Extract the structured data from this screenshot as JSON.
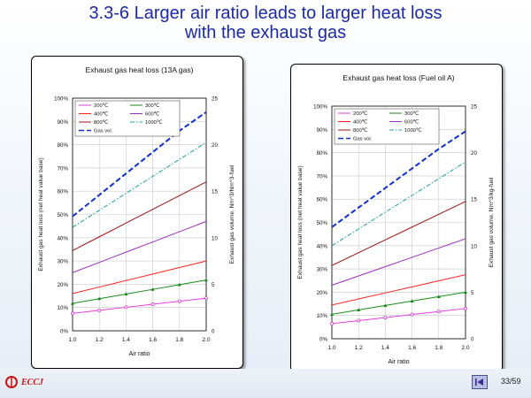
{
  "slide": {
    "title_line1": "3.3-6 Larger air ratio leads to larger heat loss",
    "title_line2": "with the exhaust gas",
    "logo_text": "ECCJ",
    "page_number": "33/59"
  },
  "chart_data": [
    {
      "type": "line",
      "title": "Exhaust gas heat loss (13A gas)",
      "xlabel": "Air ratio",
      "ylabel": "Exhaust gas heat loss (net heat value base)",
      "y2label": "Exhaust gas volume, Nm^3/Nm^3-fuel",
      "x": [
        1.0,
        1.2,
        1.4,
        1.6,
        1.8,
        2.0
      ],
      "x_ticks": [
        "1.0",
        "1.2",
        "1.4",
        "1.6",
        "1.8",
        "2.0"
      ],
      "ylim": [
        0,
        100
      ],
      "y_ticks": [
        "0%",
        "10%",
        "20%",
        "30%",
        "40%",
        "50%",
        "60%",
        "70%",
        "80%",
        "90%",
        "100%"
      ],
      "y2lim": [
        0,
        25
      ],
      "y2_ticks": [
        "0",
        "5",
        "10",
        "15",
        "20",
        "25"
      ],
      "legend_position": "top-left",
      "series": [
        {
          "name": "200℃",
          "color": "#e040e0",
          "style": "solid-marker",
          "values": [
            7.5,
            8.8,
            10.1,
            11.4,
            12.7,
            14
          ]
        },
        {
          "name": "300℃",
          "color": "#1a8a1a",
          "style": "solid-marker",
          "values": [
            11.8,
            13.8,
            15.8,
            17.8,
            19.8,
            21.8
          ]
        },
        {
          "name": "400℃",
          "color": "#ff2020",
          "style": "solid",
          "values": [
            16,
            18.8,
            21.6,
            24.4,
            27.2,
            30
          ]
        },
        {
          "name": "600℃",
          "color": "#9a2fbf",
          "style": "solid",
          "values": [
            25,
            29.4,
            33.8,
            38.2,
            42.6,
            47
          ]
        },
        {
          "name": "800℃",
          "color": "#a01010",
          "style": "solid",
          "values": [
            34.5,
            40.4,
            46.3,
            52.2,
            58.1,
            64
          ]
        },
        {
          "name": "1000℃",
          "color": "#1aa0a0",
          "style": "dashdot",
          "values": [
            44.5,
            51.8,
            59.1,
            66.4,
            73.7,
            81
          ]
        },
        {
          "name": "Gas vol.",
          "color": "#1030d0",
          "style": "dashed",
          "axis": "right",
          "values": [
            12.3,
            14.6,
            16.9,
            19.2,
            21.5,
            23.5
          ]
        }
      ]
    },
    {
      "type": "line",
      "title": "Exhaust gas heat loss (Fuel oil A)",
      "xlabel": "Air ratio",
      "ylabel": "Exhaust gas heat loss (net heat value base)",
      "y2label": "Exhaust gas volume, Nm^3/kg-fuel",
      "x": [
        1.0,
        1.2,
        1.4,
        1.6,
        1.8,
        2.0
      ],
      "x_ticks": [
        "1.0",
        "1.2",
        "1.4",
        "1.6",
        "1.8",
        "2.0"
      ],
      "ylim": [
        0,
        100
      ],
      "y_ticks": [
        "0%",
        "10%",
        "20%",
        "30%",
        "40%",
        "50%",
        "60%",
        "70%",
        "80%",
        "90%",
        "100%"
      ],
      "y2lim": [
        0,
        25
      ],
      "y2_ticks": [
        "0",
        "5",
        "10",
        "15",
        "20",
        "25"
      ],
      "legend_position": "top-left",
      "series": [
        {
          "name": "200℃",
          "color": "#e040e0",
          "style": "solid-marker",
          "values": [
            6.5,
            7.8,
            9.1,
            10.4,
            11.7,
            13
          ]
        },
        {
          "name": "300℃",
          "color": "#1a8a1a",
          "style": "solid-marker",
          "values": [
            10.5,
            12.4,
            14.3,
            16.2,
            18.1,
            20
          ]
        },
        {
          "name": "400℃",
          "color": "#ff2020",
          "style": "solid",
          "values": [
            14.5,
            17.1,
            19.7,
            22.3,
            24.9,
            27.5
          ]
        },
        {
          "name": "600℃",
          "color": "#9a2fbf",
          "style": "solid",
          "values": [
            23,
            27,
            31,
            35,
            39,
            43
          ]
        },
        {
          "name": "800℃",
          "color": "#a01010",
          "style": "solid",
          "values": [
            31.5,
            37,
            42.5,
            48,
            53.5,
            59
          ]
        },
        {
          "name": "1000℃",
          "color": "#1aa0a0",
          "style": "dashdot",
          "values": [
            40,
            47.2,
            54.4,
            61.6,
            68.8,
            76
          ]
        },
        {
          "name": "Gas vol.",
          "color": "#1030d0",
          "style": "dashed",
          "axis": "right",
          "values": [
            12,
            14.1,
            16.2,
            18.3,
            20.4,
            22.3
          ]
        }
      ]
    }
  ]
}
